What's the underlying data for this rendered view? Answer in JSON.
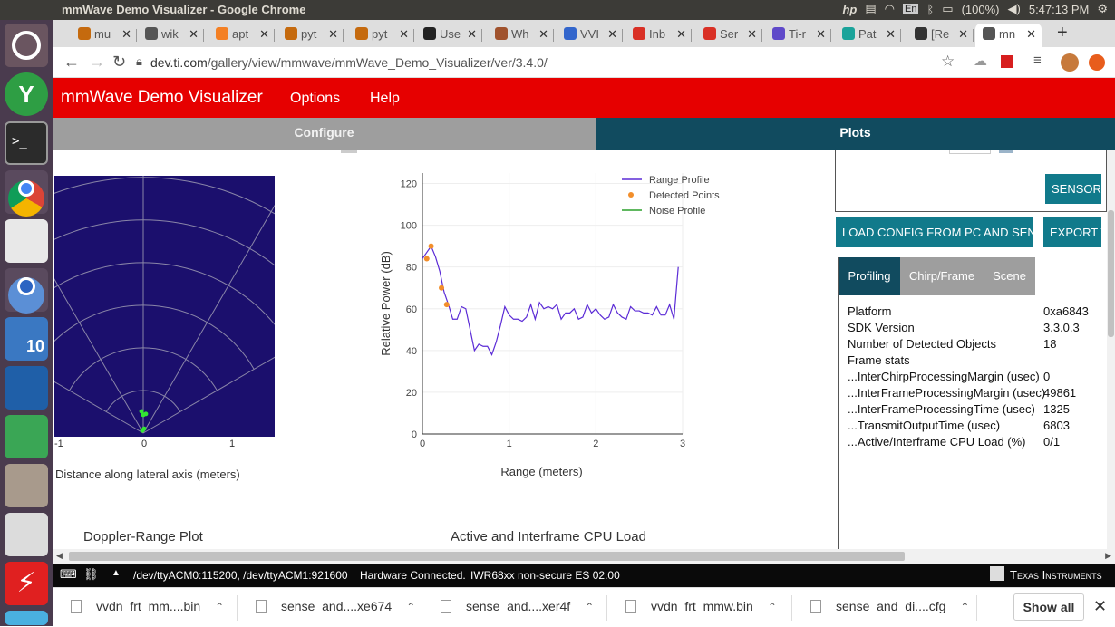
{
  "os": {
    "window_title": "mmWave Demo Visualizer - Google Chrome",
    "battery": "(100%)",
    "time": "5:47:13 PM",
    "kbd": "En"
  },
  "tabs": [
    {
      "label": "mu",
      "color": "#c56a0e"
    },
    {
      "label": "wik",
      "color": "#555"
    },
    {
      "label": "apt",
      "color": "#f48024"
    },
    {
      "label": "pyt",
      "color": "#c56a0e"
    },
    {
      "label": "pyt",
      "color": "#c56a0e"
    },
    {
      "label": "Use",
      "color": "#222"
    },
    {
      "label": "Wh",
      "color": "#a0522d"
    },
    {
      "label": "VVI",
      "color": "#3366cc"
    },
    {
      "label": "Inb",
      "color": "#d93025"
    },
    {
      "label": "Ser",
      "color": "#d93025"
    },
    {
      "label": "Ti-r",
      "color": "#5f49c9"
    },
    {
      "label": "Pat",
      "color": "#1aa39a"
    },
    {
      "label": "[Re",
      "color": "#333"
    },
    {
      "label": "mn",
      "color": "#555"
    }
  ],
  "url": {
    "domain": "dev.ti.com",
    "path": "/gallery/view/mmwave/mmWave_Demo_Visualizer/ver/3.4.0/"
  },
  "app": {
    "title": "mmWave Demo Visualizer",
    "menu": [
      "Options",
      "Help"
    ]
  },
  "mode_tabs": {
    "configure": "Configure",
    "plots": "Plots"
  },
  "scatter": {
    "x_ticks": [
      "-1",
      "0",
      "1"
    ],
    "xlabel": "Distance along lateral axis (meters)",
    "points": [
      [
        -0.02,
        0.25
      ],
      [
        0.03,
        0.22
      ],
      [
        0.0,
        0.21
      ],
      [
        0.01,
        0.05
      ],
      [
        -0.01,
        0.03
      ]
    ]
  },
  "chart_data": {
    "type": "line",
    "title": "",
    "xlabel": "Range (meters)",
    "ylabel": "Relative Power (dB)",
    "xlim": [
      0,
      3
    ],
    "ylim": [
      0,
      125
    ],
    "x_ticks": [
      "0",
      "1",
      "2",
      "3"
    ],
    "y_ticks": [
      "0",
      "20",
      "40",
      "60",
      "80",
      "100",
      "120"
    ],
    "legend_position": "top-right",
    "series": [
      {
        "name": "Range Profile",
        "color": "#5b2bd6",
        "type": "line",
        "x": [
          0.0,
          0.05,
          0.1,
          0.15,
          0.2,
          0.25,
          0.3,
          0.35,
          0.4,
          0.45,
          0.5,
          0.55,
          0.6,
          0.65,
          0.7,
          0.75,
          0.8,
          0.85,
          0.9,
          0.95,
          1.0,
          1.05,
          1.1,
          1.15,
          1.2,
          1.25,
          1.3,
          1.35,
          1.4,
          1.45,
          1.5,
          1.55,
          1.6,
          1.65,
          1.7,
          1.75,
          1.8,
          1.85,
          1.9,
          1.95,
          2.0,
          2.05,
          2.1,
          2.15,
          2.2,
          2.25,
          2.3,
          2.35,
          2.4,
          2.45,
          2.5,
          2.55,
          2.6,
          2.65,
          2.7,
          2.75,
          2.8,
          2.85,
          2.9,
          2.95
        ],
        "y": [
          84,
          87,
          90,
          85,
          78,
          68,
          62,
          55,
          55,
          61,
          60,
          50,
          40,
          43,
          42,
          42,
          38,
          44,
          52,
          61,
          57,
          55,
          55,
          54,
          56,
          62,
          55,
          63,
          60,
          61,
          60,
          62,
          55,
          58,
          58,
          60,
          55,
          56,
          62,
          58,
          60,
          57,
          55,
          56,
          62,
          58,
          56,
          55,
          61,
          59,
          59,
          58,
          58,
          57,
          61,
          57,
          57,
          62,
          55,
          80
        ]
      },
      {
        "name": "Detected Points",
        "color": "#f28e2b",
        "type": "scatter",
        "x": [
          0.05,
          0.1,
          0.22,
          0.28
        ],
        "y": [
          84,
          90,
          70,
          62
        ]
      },
      {
        "name": "Noise Profile",
        "color": "#2ca02c",
        "type": "line",
        "x": [],
        "y": []
      }
    ]
  },
  "section_titles": {
    "doppler": "Doppler-Range Plot",
    "cpu": "Active and Interframe  CPU Load"
  },
  "buttons": {
    "sensor": "SENSOR S",
    "load": "LOAD CONFIG FROM PC AND SEND",
    "export": "EXPORT T"
  },
  "panel_tabs": [
    "Profiling",
    "Chirp/Frame",
    "Scene"
  ],
  "profiling": [
    {
      "label": "Platform",
      "value": "0xa6843"
    },
    {
      "label": "SDK Version",
      "value": "3.3.0.3"
    },
    {
      "label": "Number of Detected Objects",
      "value": "18"
    },
    {
      "label": "Frame stats",
      "value": ""
    },
    {
      "label": "...InterChirpProcessingMargin (usec)",
      "value": "0"
    },
    {
      "label": "...InterFrameProcessingMargin (usec)",
      "value": "49861"
    },
    {
      "label": "...InterFrameProcessingTime (usec)",
      "value": "1325"
    },
    {
      "label": "...TransmitOutputTime (usec)",
      "value": "6803"
    },
    {
      "label": "...Active/Interframe CPU Load (%)",
      "value": "0/1"
    }
  ],
  "status": {
    "ports": "/dev/ttyACM0:115200, /dev/ttyACM1:921600",
    "connection": "Hardware Connected.",
    "device": "IWR68xx non-secure ES 02.00",
    "brand": "Texas Instruments"
  },
  "downloads": [
    "vvdn_frt_mm....bin",
    "sense_and....xe674",
    "sense_and....xer4f",
    "vvdn_frt_mmw.bin",
    "sense_and_di....cfg"
  ],
  "show_all": "Show all"
}
